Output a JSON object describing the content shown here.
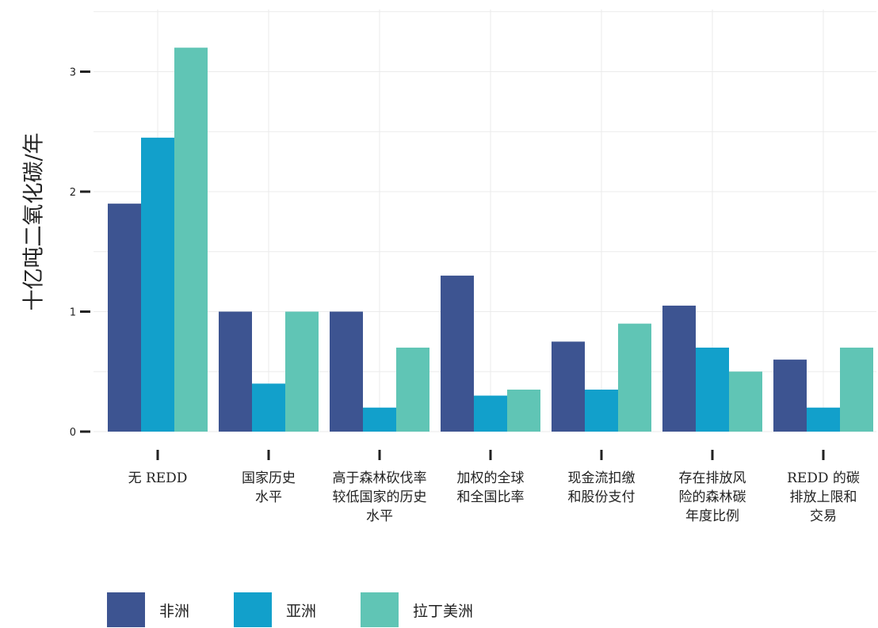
{
  "chart_data": {
    "type": "bar",
    "ylabel": "十亿吨二氧化碳/年",
    "xlabel": "",
    "ylim": [
      0,
      3.5
    ],
    "yticks": [
      0,
      1,
      2,
      3
    ],
    "ytick_labels": [
      "0",
      "1",
      "2",
      "3"
    ],
    "grid": true,
    "legend_position": "bottom",
    "categories": [
      [
        "无 REDD"
      ],
      [
        "国家历史",
        "水平"
      ],
      [
        "高于森林砍伐率",
        "较低国家的历史",
        "水平"
      ],
      [
        "加权的全球",
        "和全国比率"
      ],
      [
        "现金流扣缴",
        "和股份支付"
      ],
      [
        "存在排放风",
        "险的森林碳",
        "年度比例"
      ],
      [
        "REDD 的碳",
        "排放上限和",
        "交易"
      ]
    ],
    "series": [
      {
        "name": "非洲",
        "color": "#3d5491",
        "values": [
          1.9,
          1.0,
          1.0,
          1.3,
          0.75,
          1.05,
          0.6
        ]
      },
      {
        "name": "亚洲",
        "color": "#12a0cb",
        "values": [
          2.45,
          0.4,
          0.2,
          0.3,
          0.35,
          0.7,
          0.2
        ]
      },
      {
        "name": "拉丁美洲",
        "color": "#60c5b5",
        "values": [
          3.2,
          1.0,
          0.7,
          0.35,
          0.9,
          0.5,
          0.7
        ]
      }
    ]
  }
}
